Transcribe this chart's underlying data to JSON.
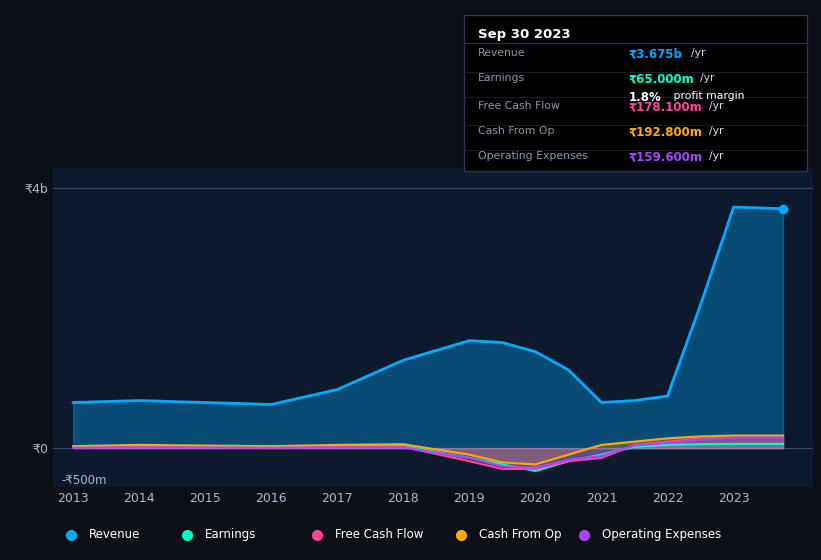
{
  "bg_color": "#0d1117",
  "chart_bg": "#0d1a2e",
  "years": [
    2013,
    2014,
    2015,
    2016,
    2017,
    2018,
    2019,
    2019.5,
    2020,
    2020.5,
    2021,
    2021.5,
    2022,
    2022.5,
    2023,
    2023.75
  ],
  "revenue": [
    700,
    730,
    700,
    670,
    900,
    1350,
    1650,
    1620,
    1480,
    1200,
    700,
    730,
    800,
    2200,
    3700,
    3675
  ],
  "earnings": [
    20,
    25,
    20,
    15,
    30,
    30,
    -150,
    -250,
    -350,
    -200,
    -100,
    20,
    50,
    60,
    65,
    65
  ],
  "free_cash_flow": [
    10,
    20,
    15,
    10,
    20,
    20,
    -200,
    -320,
    -320,
    -200,
    -150,
    50,
    100,
    150,
    178,
    178
  ],
  "cash_from_op": [
    30,
    50,
    40,
    30,
    50,
    60,
    -100,
    -220,
    -250,
    -100,
    50,
    100,
    150,
    180,
    193,
    193
  ],
  "operating_expenses": [
    5,
    10,
    8,
    5,
    10,
    10,
    -150,
    -280,
    -300,
    -180,
    -120,
    40,
    80,
    130,
    160,
    160
  ],
  "revenue_color": "#00aaff",
  "earnings_color": "#00ffcc",
  "free_cash_flow_color": "#ff4499",
  "cash_from_op_color": "#ffaa00",
  "operating_expenses_color": "#aa44ff",
  "xlabel_years": [
    2013,
    2014,
    2015,
    2016,
    2017,
    2018,
    2019,
    2020,
    2021,
    2022,
    2023
  ],
  "tooltip_title": "Sep 30 2023",
  "tooltip_revenue_val": "₹3.675b",
  "tooltip_earnings_val": "₹65.000m",
  "tooltip_margin_val": "1.8%",
  "tooltip_fcf_val": "₹178.100m",
  "tooltip_cfop_val": "₹192.800m",
  "tooltip_opex_val": "₹159.600m"
}
